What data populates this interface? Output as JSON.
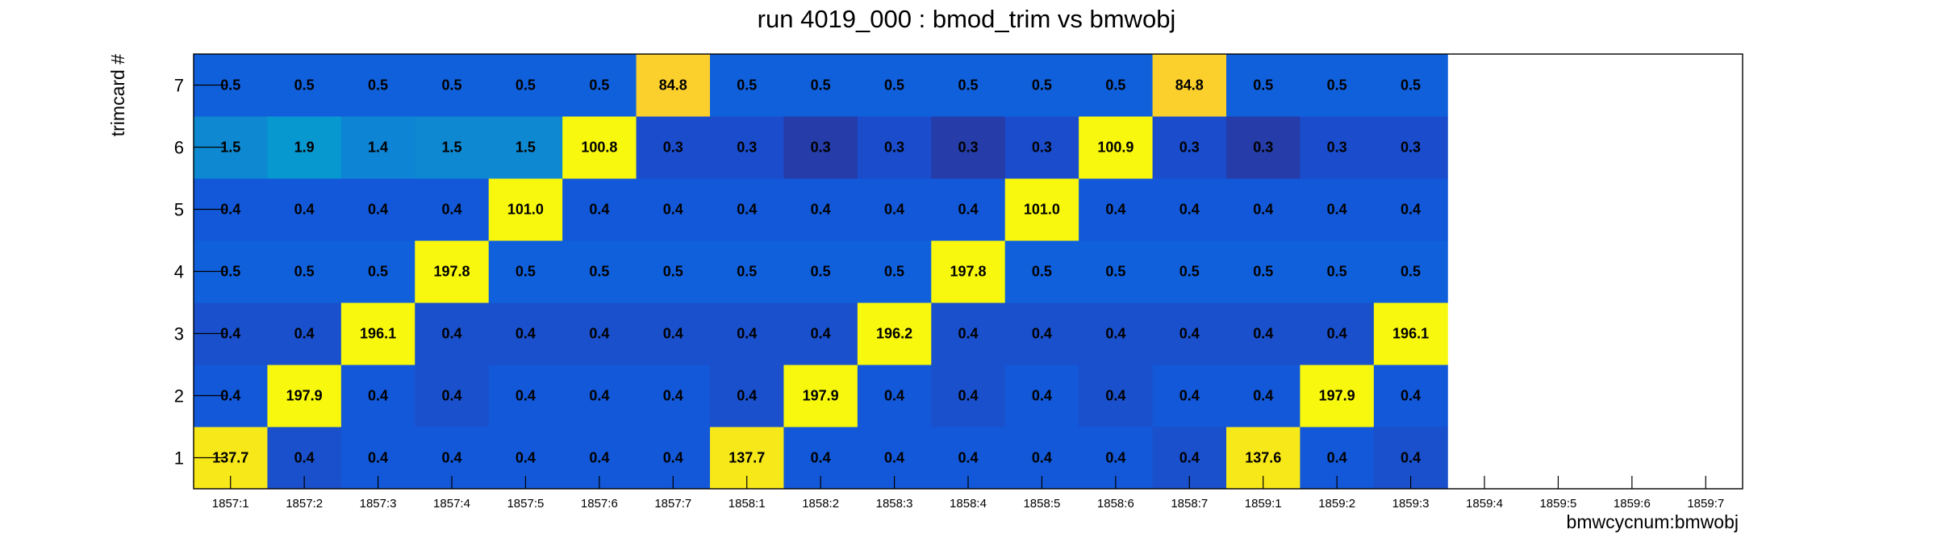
{
  "chart_data": {
    "type": "heatmap",
    "title": "run 4019_000 : bmod_trim vs bmwobj",
    "xlabel": "bmwcycnum:bmwobj",
    "ylabel": "trimcard #",
    "x_categories": [
      "1857:1",
      "1857:2",
      "1857:3",
      "1857:4",
      "1857:5",
      "1857:6",
      "1857:7",
      "1858:1",
      "1858:2",
      "1858:3",
      "1858:4",
      "1858:5",
      "1858:6",
      "1858:7",
      "1859:1",
      "1859:2",
      "1859:3",
      "1859:4",
      "1859:5",
      "1859:6",
      "1859:7"
    ],
    "y_categories": [
      "1",
      "2",
      "3",
      "4",
      "5",
      "6",
      "7"
    ],
    "values": [
      [
        137.7,
        0.4,
        0.4,
        0.4,
        0.4,
        0.4,
        0.4,
        137.7,
        0.4,
        0.4,
        0.4,
        0.4,
        0.4,
        0.4,
        137.6,
        0.4,
        0.4,
        null,
        null,
        null,
        null
      ],
      [
        0.4,
        197.9,
        0.4,
        0.4,
        0.4,
        0.4,
        0.4,
        0.4,
        197.9,
        0.4,
        0.4,
        0.4,
        0.4,
        0.4,
        0.4,
        197.9,
        0.4,
        null,
        null,
        null,
        null
      ],
      [
        0.4,
        0.4,
        196.1,
        0.4,
        0.4,
        0.4,
        0.4,
        0.4,
        0.4,
        196.2,
        0.4,
        0.4,
        0.4,
        0.4,
        0.4,
        0.4,
        196.1,
        null,
        null,
        null,
        null
      ],
      [
        0.5,
        0.5,
        0.5,
        197.8,
        0.5,
        0.5,
        0.5,
        0.5,
        0.5,
        0.5,
        197.8,
        0.5,
        0.5,
        0.5,
        0.5,
        0.5,
        0.5,
        null,
        null,
        null,
        null
      ],
      [
        0.4,
        0.4,
        0.4,
        0.4,
        101.0,
        0.4,
        0.4,
        0.4,
        0.4,
        0.4,
        0.4,
        101.0,
        0.4,
        0.4,
        0.4,
        0.4,
        0.4,
        null,
        null,
        null,
        null
      ],
      [
        1.5,
        1.9,
        1.4,
        1.5,
        1.5,
        100.8,
        0.3,
        0.3,
        0.3,
        0.3,
        0.3,
        0.3,
        100.9,
        0.3,
        0.3,
        0.3,
        0.3,
        null,
        null,
        null,
        null
      ],
      [
        0.5,
        0.5,
        0.5,
        0.5,
        0.5,
        0.5,
        84.8,
        0.5,
        0.5,
        0.5,
        0.5,
        0.5,
        0.5,
        84.8,
        0.5,
        0.5,
        0.5,
        null,
        null,
        null,
        null
      ]
    ],
    "cell_colors": [
      [
        "#f7e81a",
        "#1a50cc",
        "#1258d8",
        "#1258d8",
        "#1258d8",
        "#1258d8",
        "#1258d8",
        "#f7e81a",
        "#1258d8",
        "#1258d8",
        "#1258d8",
        "#1258d8",
        "#1258d8",
        "#1a50cc",
        "#f7e81a",
        "#1258d8",
        "#1a50cc",
        null,
        null,
        null,
        null
      ],
      [
        "#1258d8",
        "#f8f80e",
        "#1258d8",
        "#1a50cc",
        "#1258d8",
        "#1258d8",
        "#1258d8",
        "#1a50cc",
        "#f8f80e",
        "#1258d8",
        "#1a50cc",
        "#1258d8",
        "#1a50cc",
        "#1258d8",
        "#1258d8",
        "#f8f80e",
        "#1258d8",
        null,
        null,
        null,
        null
      ],
      [
        "#1a50cc",
        "#1a50cc",
        "#f8f80e",
        "#1a50cc",
        "#1a50cc",
        "#1a50cc",
        "#1a50cc",
        "#1a50cc",
        "#1a50cc",
        "#f8f80e",
        "#1a50cc",
        "#1a50cc",
        "#1a50cc",
        "#1a50cc",
        "#1a50cc",
        "#1a50cc",
        "#f8f80e",
        null,
        null,
        null,
        null
      ],
      [
        "#1060dc",
        "#1060dc",
        "#1060dc",
        "#f8f80e",
        "#1060dc",
        "#1060dc",
        "#1060dc",
        "#1060dc",
        "#1060dc",
        "#1060dc",
        "#f8f80e",
        "#1060dc",
        "#1060dc",
        "#1060dc",
        "#1060dc",
        "#1060dc",
        "#1060dc",
        null,
        null,
        null,
        null
      ],
      [
        "#1258d8",
        "#1258d8",
        "#1258d8",
        "#1258d8",
        "#f8f80e",
        "#1258d8",
        "#1258d8",
        "#1258d8",
        "#1258d8",
        "#1258d8",
        "#1258d8",
        "#f8f80e",
        "#1258d8",
        "#1258d8",
        "#1258d8",
        "#1258d8",
        "#1258d8",
        null,
        null,
        null,
        null
      ],
      [
        "#0e88d0",
        "#0898d0",
        "#0e84d4",
        "#0e88d0",
        "#0e88d0",
        "#f8f80e",
        "#1a4ccc",
        "#1a4ccc",
        "#263ca8",
        "#1a4ccc",
        "#263ca8",
        "#1a4ccc",
        "#f8f80e",
        "#1a4ccc",
        "#263ca8",
        "#1a4ccc",
        "#1a4ccc",
        null,
        null,
        null,
        null
      ],
      [
        "#1060dc",
        "#1060dc",
        "#1060dc",
        "#1060dc",
        "#1060dc",
        "#1060dc",
        "#fcd02c",
        "#1060dc",
        "#1060dc",
        "#1060dc",
        "#1060dc",
        "#1060dc",
        "#1060dc",
        "#fcd02c",
        "#1060dc",
        "#1060dc",
        "#1060dc",
        null,
        null,
        null,
        null
      ]
    ],
    "grid": false,
    "legend": "none"
  }
}
